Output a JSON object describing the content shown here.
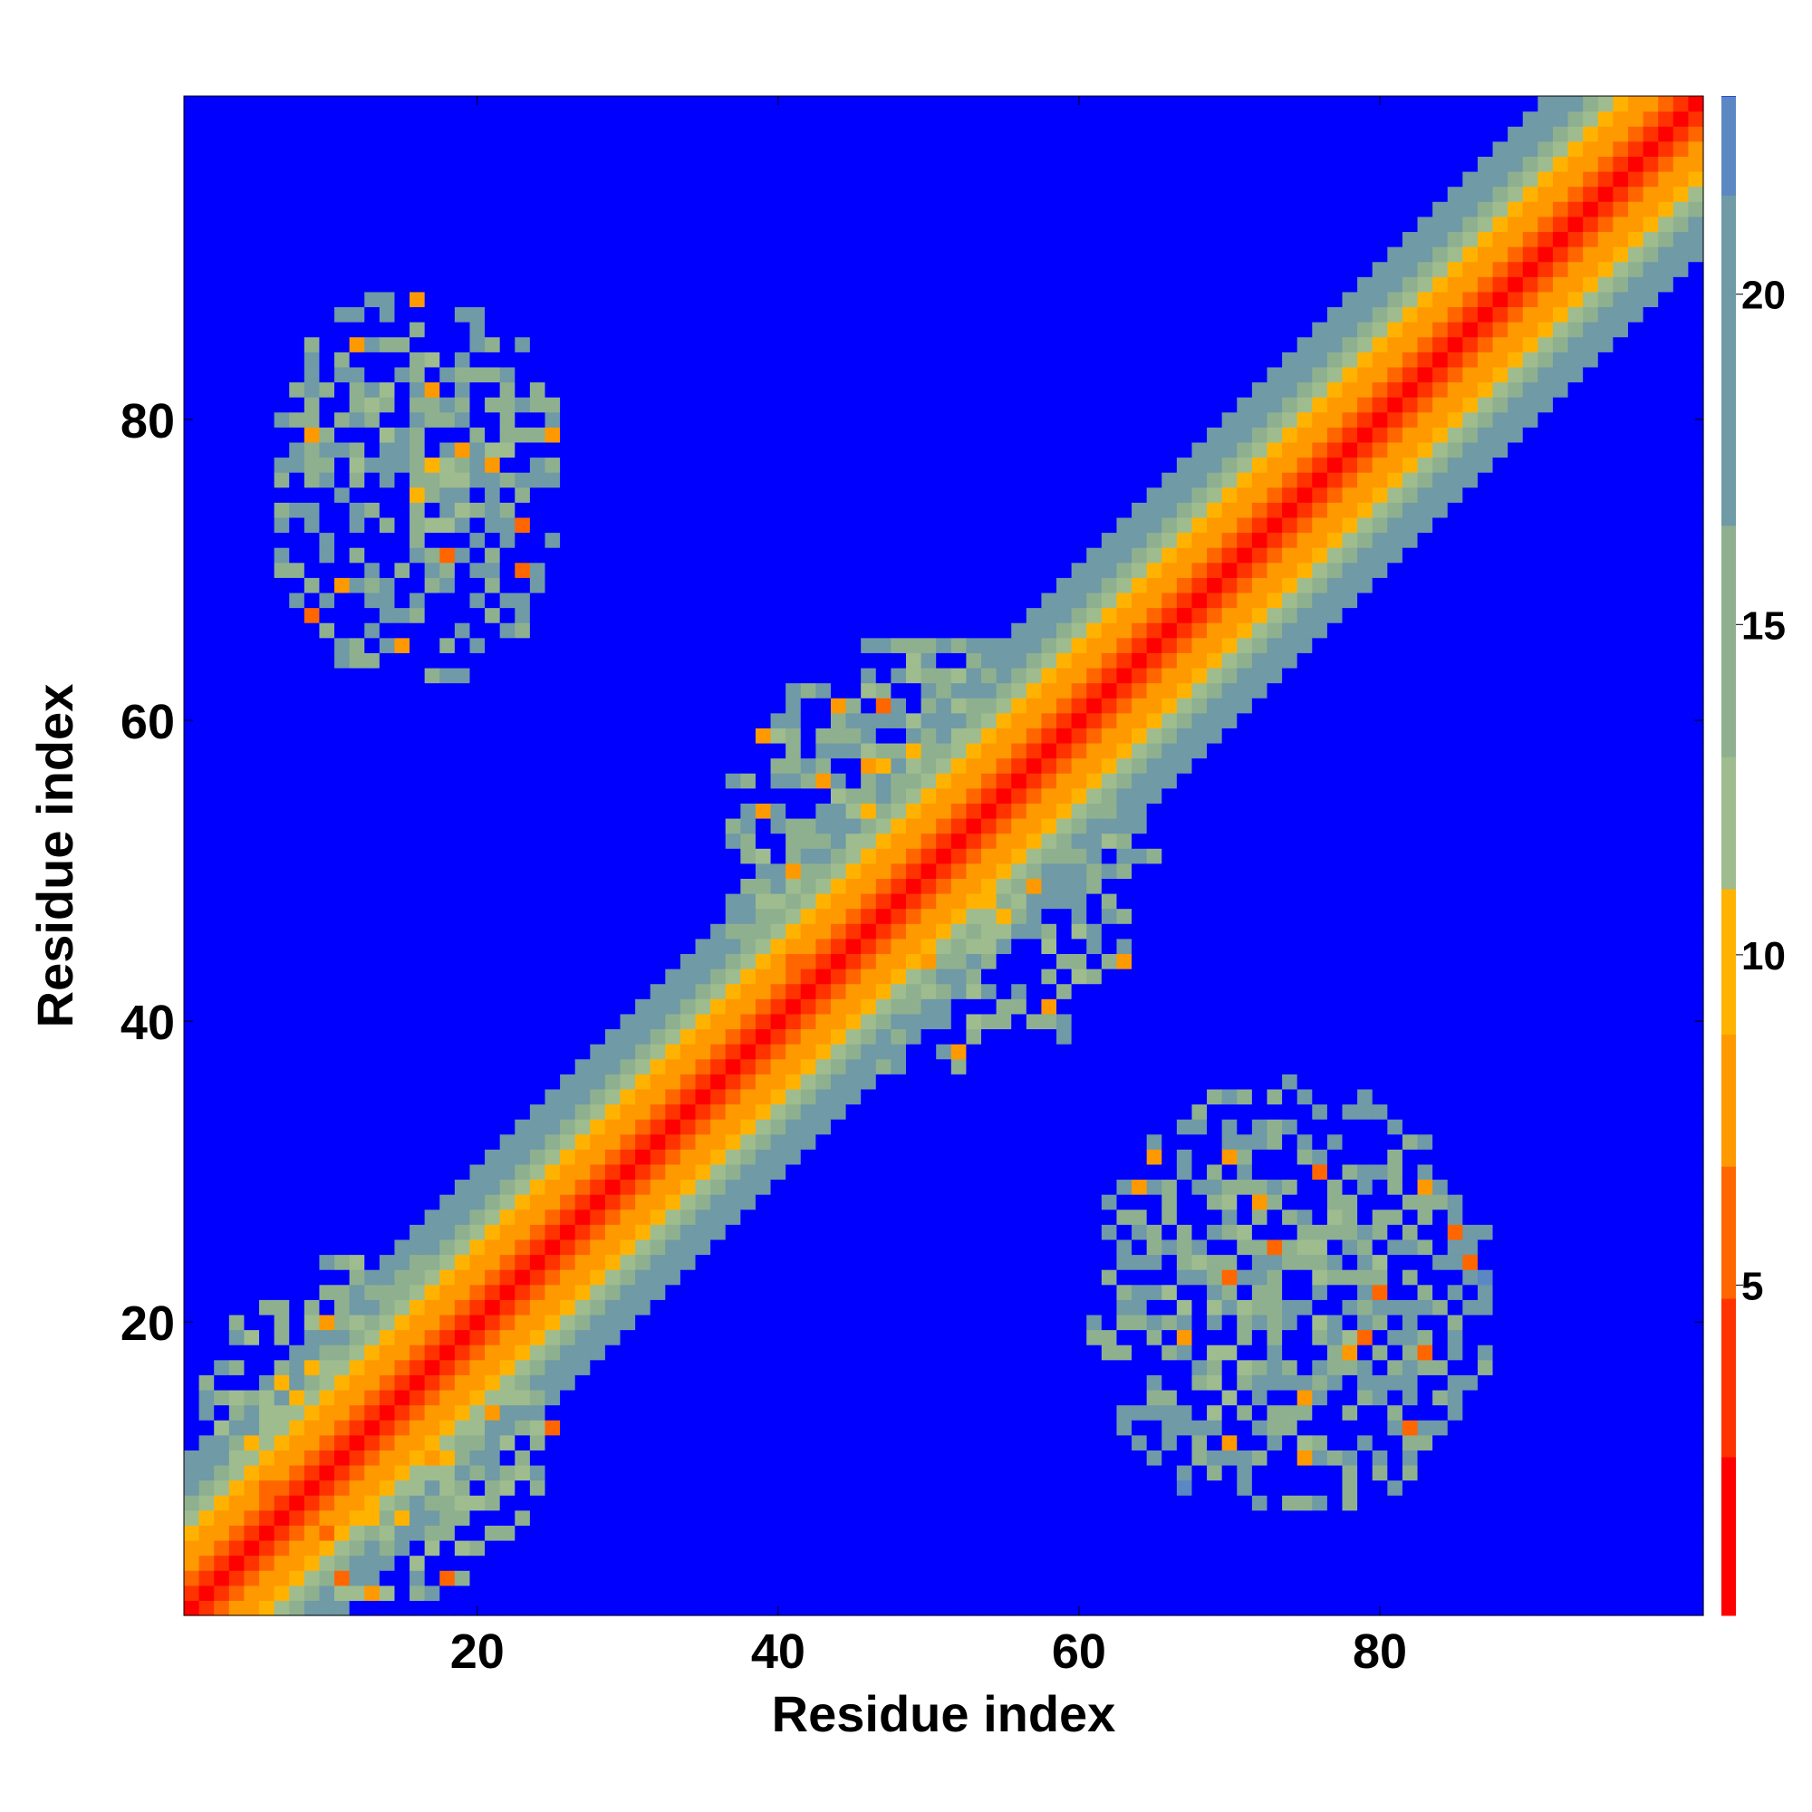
{
  "chart_data": {
    "type": "heatmap",
    "title": "",
    "xlabel": "Residue index",
    "ylabel": "Residue index",
    "n_residues": 101,
    "xlim": [
      1,
      101
    ],
    "ylim": [
      1,
      101
    ],
    "x_ticks": [
      20,
      40,
      60,
      80
    ],
    "y_ticks": [
      20,
      40,
      60,
      80
    ],
    "colorbar": {
      "ticks": [
        5,
        10,
        15,
        20
      ],
      "range": [
        0,
        23
      ],
      "colors": [
        "#ff0000",
        "#ff3300",
        "#ff6600",
        "#ff9900",
        "#ffb300",
        "#9fbc8f",
        "#8fb08f",
        "#6f9aa6",
        "#5b88c2",
        "#0000ff"
      ],
      "levels": [
        0,
        2.4,
        4.8,
        6.8,
        8.8,
        11.0,
        13.0,
        16.5,
        21.5,
        23
      ]
    },
    "diagonal_band": {
      "description": "contacts along main diagonal, distance increasing with |i-j|",
      "band_profile": [
        {
          "offset": 0,
          "value": 1
        },
        {
          "offset": 1,
          "value": 3
        },
        {
          "offset": 2,
          "value": 5
        },
        {
          "offset": 3,
          "value": 7
        },
        {
          "offset": 4,
          "value": 8
        },
        {
          "offset": 5,
          "value": 10
        },
        {
          "offset": 6,
          "value": 12
        },
        {
          "offset": 7,
          "value": 14
        },
        {
          "offset": 8,
          "value": 17
        },
        {
          "offset": 9,
          "value": 19
        },
        {
          "offset": 10,
          "value": 21
        }
      ]
    },
    "off_diagonal_clusters": [
      {
        "x_range": [
          6,
          26
        ],
        "y_range": [
          62,
          89
        ],
        "typical_value": 14
      },
      {
        "x_range": [
          60,
          88
        ],
        "y_range": [
          7,
          36
        ],
        "typical_value": 14
      },
      {
        "x_range": [
          36,
          65
        ],
        "y_range": [
          36,
          66
        ],
        "typical_value": 13
      },
      {
        "x_range": [
          1,
          25
        ],
        "y_range": [
          1,
          25
        ],
        "typical_value": 12
      }
    ],
    "background_value": 23,
    "colors": {
      "background": "#0000ff",
      "closest": "#ff0000"
    }
  }
}
